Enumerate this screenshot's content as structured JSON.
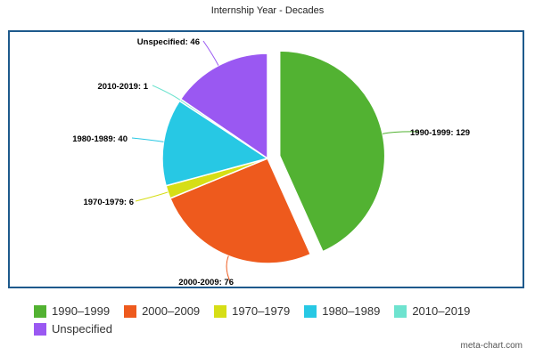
{
  "chart_data": {
    "type": "pie",
    "title": "Internship Year - Decades",
    "slices": [
      {
        "label": "1990-1999",
        "value": 129,
        "color": "#52b232",
        "exploded": true
      },
      {
        "label": "2000-2009",
        "value": 76,
        "color": "#ee5a1d"
      },
      {
        "label": "1970-1979",
        "value": 6,
        "color": "#d6de16"
      },
      {
        "label": "1980-1989",
        "value": 40,
        "color": "#27c8e4"
      },
      {
        "label": "2010-2019",
        "value": 1,
        "color": "#6ee3cf"
      },
      {
        "label": "Unspecified",
        "value": 46,
        "color": "#9a58f2"
      }
    ],
    "slice_labels": [
      "1990-1999: 129",
      "2000-2009: 76",
      "1970-1979: 6",
      "1980-1989: 40",
      "2010-2019: 1",
      "Unspecified: 46"
    ],
    "legend": {
      "placement": "bottom",
      "items": [
        "1990–1999",
        "2000–2009",
        "1970–1979",
        "1980–1989",
        "2010–2019",
        "Unspecified"
      ]
    }
  },
  "credit": "meta-chart.com"
}
